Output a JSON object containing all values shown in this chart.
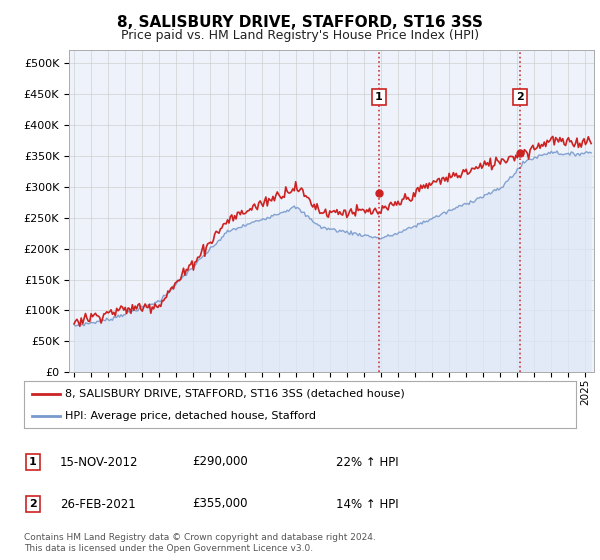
{
  "title": "8, SALISBURY DRIVE, STAFFORD, ST16 3SS",
  "subtitle": "Price paid vs. HM Land Registry's House Price Index (HPI)",
  "legend_line1": "8, SALISBURY DRIVE, STAFFORD, ST16 3SS (detached house)",
  "legend_line2": "HPI: Average price, detached house, Stafford",
  "annotation1_label": "1",
  "annotation1_date": "15-NOV-2012",
  "annotation1_price": "£290,000",
  "annotation1_hpi": "22% ↑ HPI",
  "annotation2_label": "2",
  "annotation2_date": "26-FEB-2021",
  "annotation2_price": "£355,000",
  "annotation2_hpi": "14% ↑ HPI",
  "red_color": "#cc2222",
  "blue_color": "#7799cc",
  "fill_color": "#dde8f8",
  "grid_color": "#cccccc",
  "ylim": [
    0,
    520000
  ],
  "yticks": [
    0,
    50000,
    100000,
    150000,
    200000,
    250000,
    300000,
    350000,
    400000,
    450000,
    500000
  ],
  "xlim_start": 1994.7,
  "xlim_end": 2025.5,
  "sale1_x": 2012.88,
  "sale1_y": 290000,
  "sale2_x": 2021.15,
  "sale2_y": 355000,
  "footer": "Contains HM Land Registry data © Crown copyright and database right 2024.\nThis data is licensed under the Open Government Licence v3.0."
}
